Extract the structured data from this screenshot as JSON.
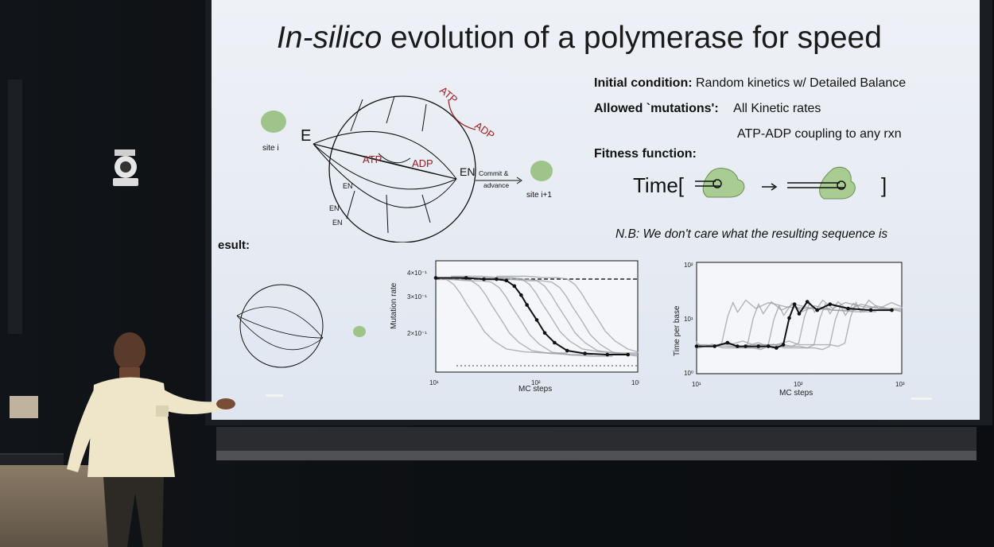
{
  "slide": {
    "title_italic": "In-silico",
    "title_rest": " evolution of a polymerase for speed",
    "initial_condition_label": "Initial condition:",
    "initial_condition_value": "Random kinetics w/ Detailed Balance",
    "allowed_mutations_label": "Allowed `mutations':",
    "allowed_mutations_value1": "All Kinetic rates",
    "allowed_mutations_value2": "ATP-ADP coupling to any rxn",
    "fitness_label": "Fitness function:",
    "time_prefix": "Time[",
    "time_suffix": "]",
    "nb_text": "N.B: We don't care what the resulting sequence is",
    "result_label": "esult:"
  },
  "diagram": {
    "node_E": "E",
    "node_EN": "EN",
    "atp1": "ATP",
    "adp1": "ADP",
    "atp2": "ATP",
    "adp2": "ADP",
    "site_i": "site i",
    "site_i1": "site i+1",
    "commit1": "Commit &",
    "commit2": "advance",
    "en1": "EN",
    "en2": "EN",
    "en3": "EN",
    "accent_red": "#9b1c22"
  },
  "chart_data": [
    {
      "type": "line",
      "xlabel": "MC steps",
      "ylabel": "Mutation rate",
      "xscale": "log",
      "yscale": "log",
      "x_ticks": [
        "10¹",
        "10²",
        "10³"
      ],
      "y_ticks": [
        "4×10⁻¹",
        "3×10⁻¹",
        "2×10⁻¹"
      ],
      "highlight_series": {
        "x": [
          10,
          20,
          30,
          40,
          50,
          60,
          70,
          80,
          100,
          120,
          150,
          200,
          300,
          500,
          800
        ],
        "y": [
          0.37,
          0.37,
          0.365,
          0.365,
          0.36,
          0.34,
          0.31,
          0.28,
          0.24,
          0.21,
          0.19,
          0.175,
          0.17,
          0.168,
          0.168
        ]
      }
    },
    {
      "type": "line",
      "xlabel": "MC steps",
      "ylabel": "Time per base",
      "xscale": "log",
      "yscale": "log",
      "x_ticks": [
        "10¹",
        "10²",
        "10³"
      ],
      "y_ticks": [
        "10²",
        "10¹",
        "10⁰"
      ],
      "highlight_series": {
        "x": [
          10,
          15,
          20,
          25,
          30,
          40,
          50,
          60,
          70,
          80,
          90,
          100,
          120,
          150,
          200,
          300,
          500,
          800
        ],
        "y": [
          3,
          3,
          3.5,
          3,
          3,
          3,
          3,
          2.8,
          3.2,
          10,
          18,
          12,
          20,
          14,
          18,
          15,
          14,
          14
        ]
      }
    }
  ]
}
